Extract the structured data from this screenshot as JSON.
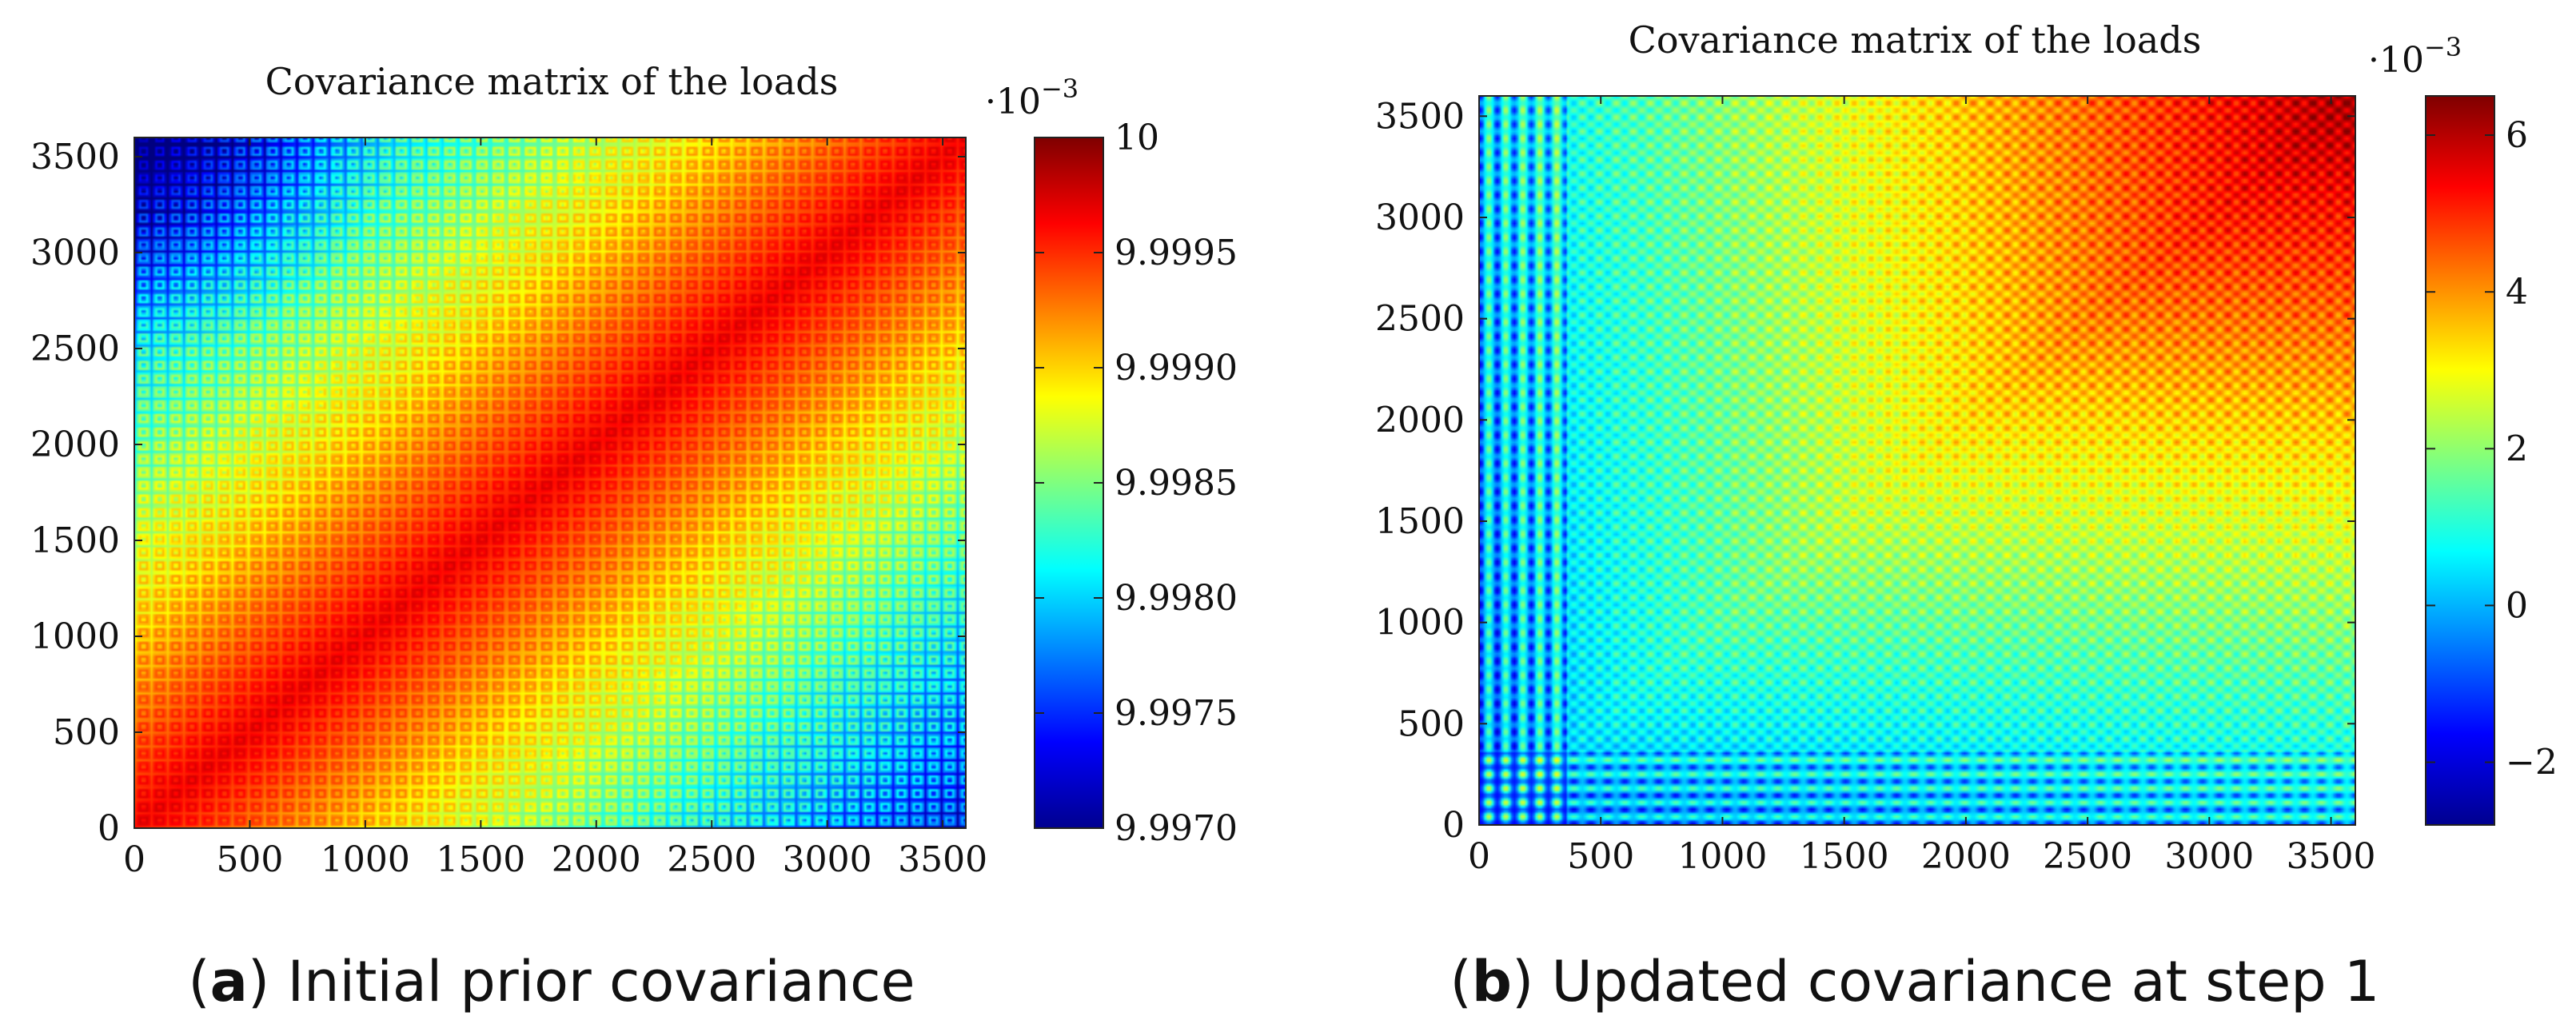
{
  "chart_data": [
    {
      "type": "heatmap",
      "title": "Covariance matrix of the loads",
      "caption_tag": "a",
      "caption_text": " Initial prior covariance",
      "xlabel": "",
      "ylabel": "",
      "xlim": [
        0,
        3600
      ],
      "ylim": [
        0,
        3600
      ],
      "x_ticks": [
        "0",
        "500",
        "1000",
        "1500",
        "2000",
        "2500",
        "3000",
        "3500"
      ],
      "x_tick_values": [
        0,
        500,
        1000,
        1500,
        2000,
        2500,
        3000,
        3500
      ],
      "y_ticks": [
        "0",
        "500",
        "1000",
        "1500",
        "2000",
        "2500",
        "3000",
        "3500"
      ],
      "y_tick_values": [
        0,
        500,
        1000,
        1500,
        2000,
        2500,
        3000,
        3500
      ],
      "colormap": "jet",
      "colorbar": {
        "range": [
          0.009997,
          0.01
        ],
        "multiplier": "·10",
        "multiplier_exp": "−3",
        "ticks": [
          "10",
          "9.9995",
          "9.9990",
          "9.9985",
          "9.9980",
          "9.9975",
          "9.9970"
        ],
        "tick_values": [
          0.01,
          0.0099995,
          0.009999,
          0.0099985,
          0.009998,
          0.0099975,
          0.009997
        ]
      },
      "pattern": {
        "description": "periodic lattice; near max along diagonal, lower toward top-left and bottom-right corners",
        "max": 0.01,
        "min": 0.009997,
        "period": 70
      }
    },
    {
      "type": "heatmap",
      "title": "Covariance matrix of the loads",
      "caption_tag": "b",
      "caption_text": " Updated covariance at step 1",
      "xlabel": "",
      "ylabel": "",
      "xlim": [
        0,
        3600
      ],
      "ylim": [
        0,
        3600
      ],
      "x_ticks": [
        "0",
        "500",
        "1000",
        "1500",
        "2000",
        "2500",
        "3000",
        "3500"
      ],
      "x_tick_values": [
        0,
        500,
        1000,
        1500,
        2000,
        2500,
        3000,
        3500
      ],
      "y_ticks": [
        "0",
        "500",
        "1000",
        "1500",
        "2000",
        "2500",
        "3000",
        "3500"
      ],
      "y_tick_values": [
        0,
        500,
        1000,
        1500,
        2000,
        2500,
        3000,
        3500
      ],
      "colormap": "jet",
      "colorbar": {
        "range": [
          -0.0028,
          0.0065
        ],
        "multiplier": "·10",
        "multiplier_exp": "−3",
        "ticks": [
          "6",
          "4",
          "2",
          "0",
          "−2"
        ],
        "tick_values": [
          0.006,
          0.004,
          0.002,
          0.0,
          -0.002
        ]
      },
      "pattern": {
        "description": "periodic lattice; values increase toward the top-right, strong stripes near x=0 and near y=0",
        "max": 0.0065,
        "min": -0.0028,
        "period": 70
      }
    }
  ]
}
